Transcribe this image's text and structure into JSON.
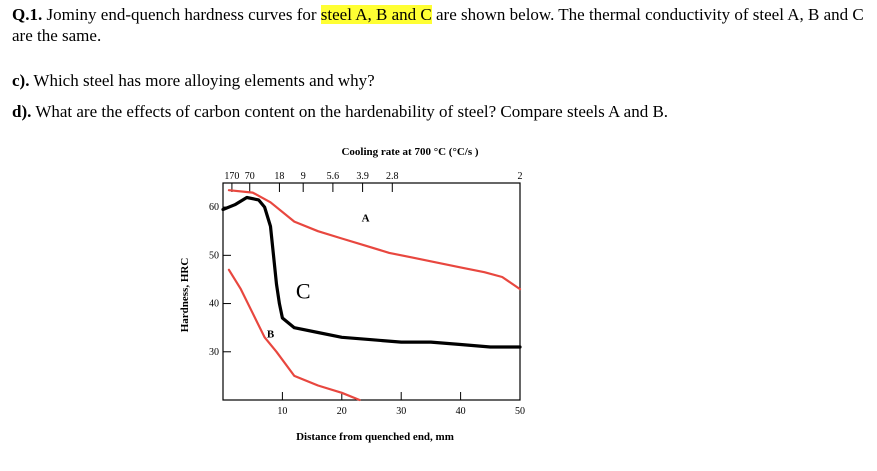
{
  "question": {
    "number": "Q.1.",
    "text_before": " Jominy end-quench hardness curves for ",
    "highlight": "steel A, B and C",
    "text_after": " are shown below. The thermal conductivity of steel A, B and C are the same."
  },
  "parts": [
    {
      "label": "c).",
      "text": " Which steel has more alloying elements and why?"
    },
    {
      "label": "d).",
      "text": " What are the effects of carbon content on the hardenability of steel? Compare steels A and B."
    }
  ],
  "colors": {
    "highlight": "#ffff33",
    "curve_red": "#e8473f",
    "curve_black": "#000000"
  },
  "chart_data": {
    "type": "line",
    "title": "Cooling rate at 700 °C (°C/s )",
    "xlabel": "Distance from quenched end, mm",
    "ylabel": "Hardness, HRC",
    "xlim": [
      0,
      50
    ],
    "ylim": [
      20,
      65
    ],
    "x_ticks": [
      10,
      20,
      30,
      40,
      50
    ],
    "y_ticks": [
      30,
      40,
      50,
      60
    ],
    "top_ticks": [
      {
        "label": "170",
        "x": 1.5
      },
      {
        "label": "70",
        "x": 4.5
      },
      {
        "label": "18",
        "x": 9.5
      },
      {
        "label": "9",
        "x": 13.5
      },
      {
        "label": "5.6",
        "x": 18.5
      },
      {
        "label": "3.9",
        "x": 23.5
      },
      {
        "label": "2.8",
        "x": 28.5
      },
      {
        "label": "2",
        "x": 50
      }
    ],
    "grid": false,
    "series": [
      {
        "name": "A",
        "color": "#e8473f",
        "label_at": [
          24,
          57
        ],
        "x": [
          1,
          5,
          8,
          12,
          16,
          20,
          24,
          28,
          32,
          36,
          40,
          44,
          47,
          50
        ],
        "y": [
          63.5,
          63,
          61,
          57,
          55,
          53.5,
          52,
          50.5,
          49.5,
          48.5,
          47.5,
          46.5,
          45.5,
          43
        ]
      },
      {
        "name": "B",
        "color": "#e8473f",
        "label_at": [
          8,
          33
        ],
        "x": [
          1,
          3,
          5,
          7,
          9,
          12,
          16,
          20,
          23
        ],
        "y": [
          47,
          43,
          38,
          33,
          30,
          25,
          23,
          21.5,
          20
        ]
      },
      {
        "name": "C",
        "color": "#000000",
        "label_at": [
          13.5,
          41
        ],
        "x": [
          0,
          2,
          4,
          6,
          7,
          8,
          8.5,
          9,
          9.5,
          10,
          12,
          16,
          20,
          25,
          30,
          35,
          40,
          45,
          50
        ],
        "y": [
          59.5,
          60.5,
          62,
          61.5,
          60,
          56,
          50,
          44,
          40,
          37,
          35,
          34,
          33,
          32.5,
          32,
          32,
          31.5,
          31,
          31
        ]
      }
    ]
  }
}
